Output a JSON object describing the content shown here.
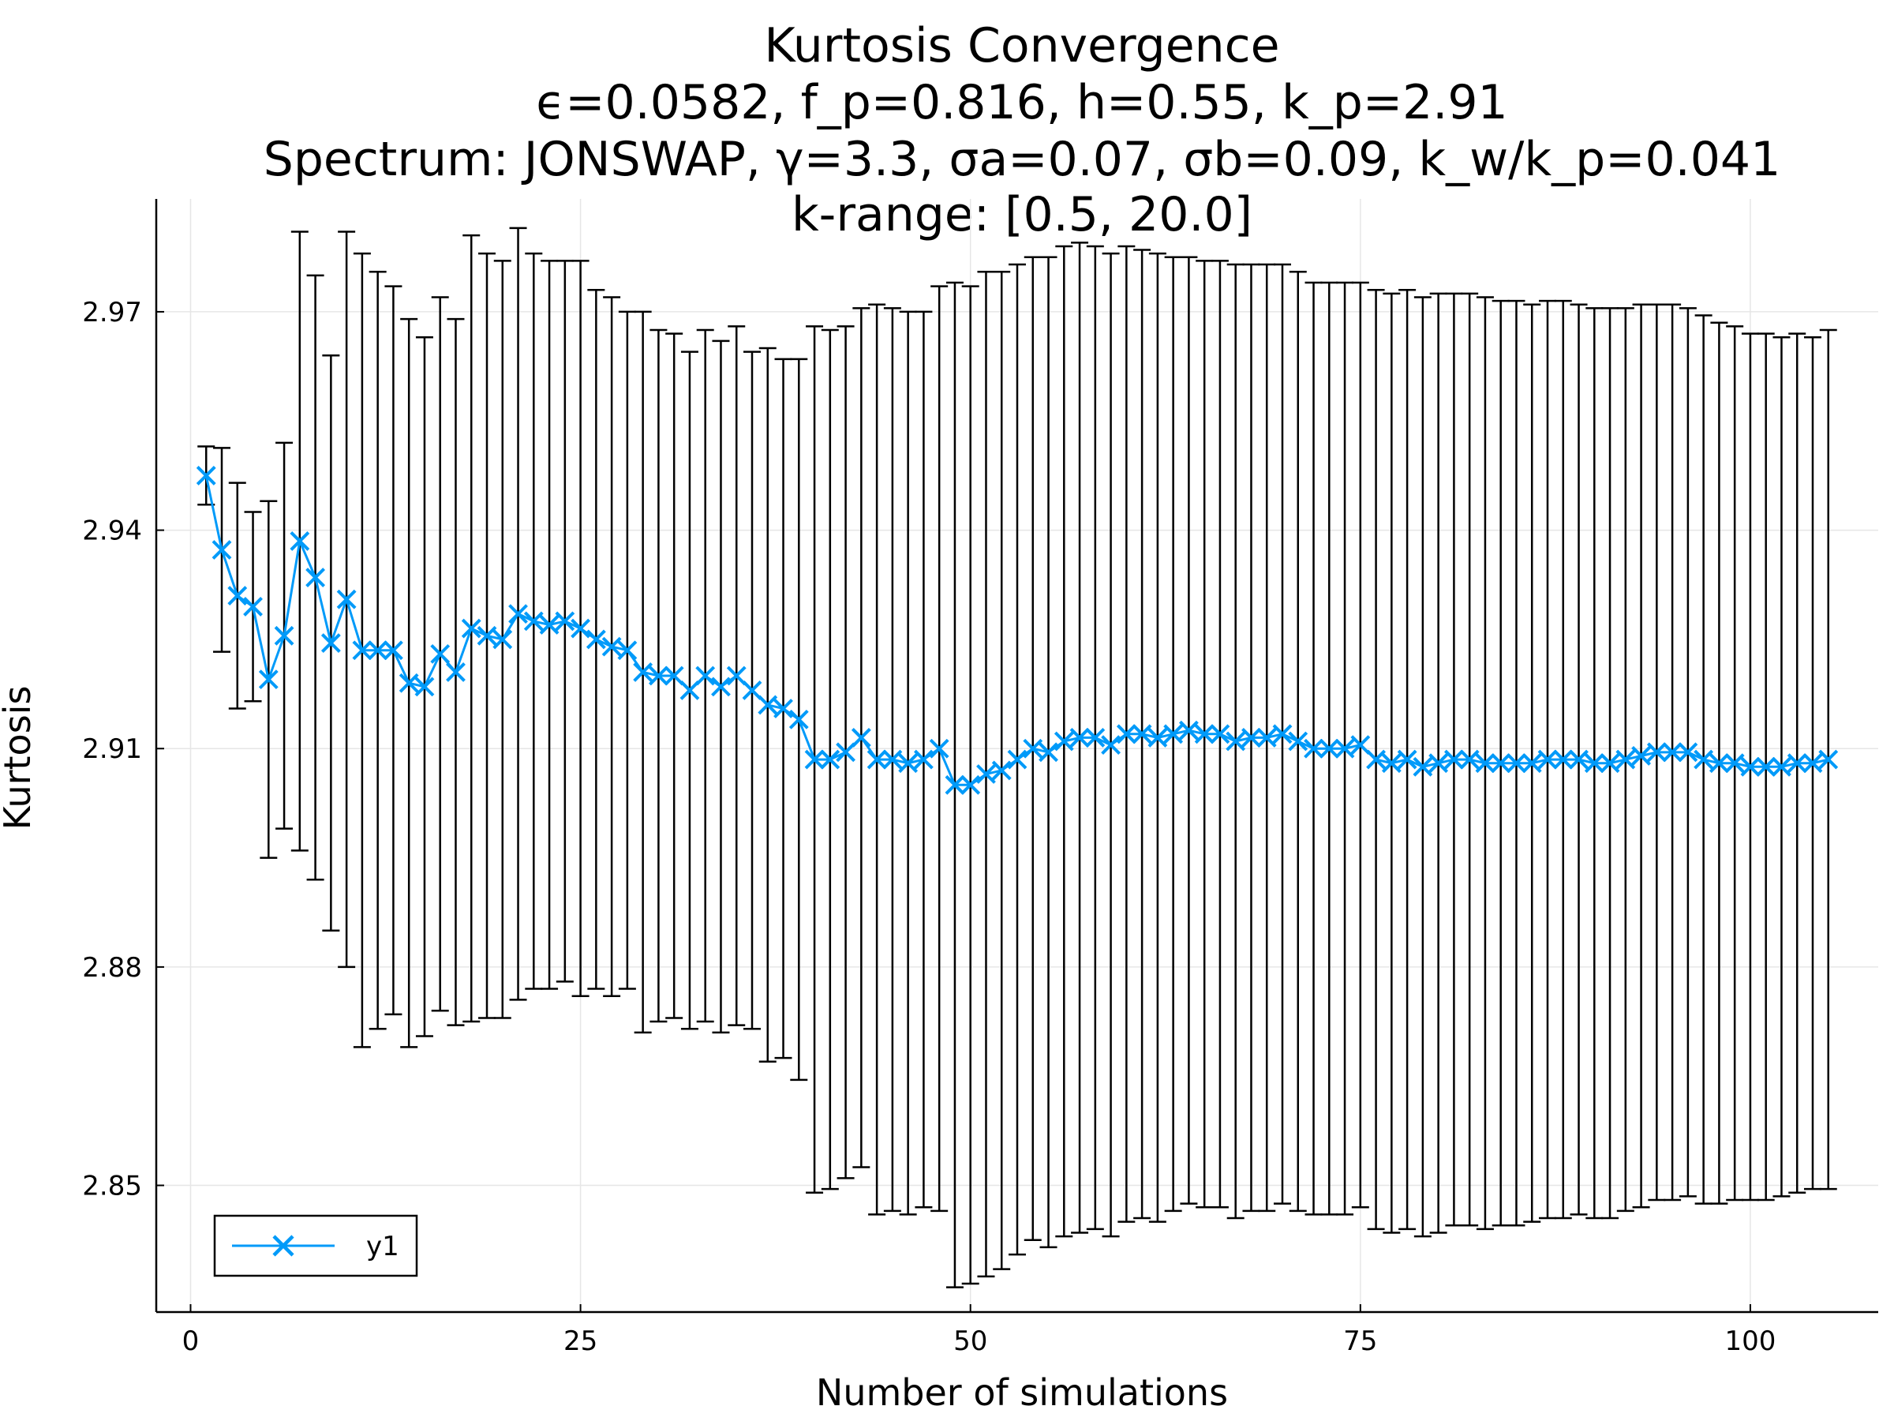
{
  "chart_data": {
    "type": "line",
    "title_lines": [
      "Kurtosis Convergence",
      "ϵ=0.0582, f_p=0.816, h=0.55, k_p=2.91",
      "Spectrum: JONSWAP, γ=3.3, σa=0.07, σb=0.09, k_w/k_p=0.041",
      "k-range: [0.5, 20.0]"
    ],
    "xlabel": "Number of simulations",
    "ylabel": "Kurtosis",
    "xlim": [
      -2.2,
      108.2
    ],
    "ylim": [
      2.8326,
      2.9855
    ],
    "xticks": [
      0,
      25,
      50,
      75,
      100
    ],
    "xtick_labels": [
      "0",
      "25",
      "50",
      "75",
      "100"
    ],
    "yticks": [
      2.85,
      2.88,
      2.91,
      2.94,
      2.97
    ],
    "ytick_labels": [
      "2.85",
      "2.88",
      "2.91",
      "2.94",
      "2.97"
    ],
    "grid": true,
    "legend_position": "bottom-left",
    "series": [
      {
        "name": "y1",
        "color": "#009af9",
        "marker": "x",
        "x": [
          1,
          2,
          3,
          4,
          5,
          6,
          7,
          8,
          9,
          10,
          11,
          12,
          13,
          14,
          15,
          16,
          17,
          18,
          19,
          20,
          21,
          22,
          23,
          24,
          25,
          26,
          27,
          28,
          29,
          30,
          31,
          32,
          33,
          34,
          35,
          36,
          37,
          38,
          39,
          40,
          41,
          42,
          43,
          44,
          45,
          46,
          47,
          48,
          49,
          50,
          51,
          52,
          53,
          54,
          55,
          56,
          57,
          58,
          59,
          60,
          61,
          62,
          63,
          64,
          65,
          66,
          67,
          68,
          69,
          70,
          71,
          72,
          73,
          74,
          75,
          76,
          77,
          78,
          79,
          80,
          81,
          82,
          83,
          84,
          85,
          86,
          87,
          88,
          89,
          90,
          91,
          92,
          93,
          94,
          95,
          96,
          97,
          98,
          99,
          100,
          101,
          102,
          103,
          104,
          105
        ],
        "y": [
          2.9475,
          2.9373,
          2.931,
          2.9295,
          2.9195,
          2.9255,
          2.9385,
          2.9335,
          2.9245,
          2.9305,
          2.9235,
          2.9235,
          2.9235,
          2.919,
          2.9185,
          2.923,
          2.9205,
          2.9265,
          2.9255,
          2.925,
          2.9285,
          2.9275,
          2.927,
          2.9275,
          2.9265,
          2.925,
          2.924,
          2.9235,
          2.9205,
          2.92,
          2.92,
          2.918,
          2.92,
          2.9185,
          2.92,
          2.918,
          2.916,
          2.9155,
          2.914,
          2.9085,
          2.9085,
          2.9095,
          2.9115,
          2.9085,
          2.9085,
          2.908,
          2.9085,
          2.91,
          2.905,
          2.905,
          2.9065,
          2.907,
          2.9085,
          2.91,
          2.9095,
          2.911,
          2.9115,
          2.9115,
          2.9105,
          2.912,
          2.912,
          2.9115,
          2.912,
          2.9125,
          2.912,
          2.912,
          2.911,
          2.9115,
          2.9115,
          2.912,
          2.911,
          2.91,
          2.91,
          2.91,
          2.9105,
          2.9085,
          2.908,
          2.9085,
          2.9075,
          2.908,
          2.9085,
          2.9085,
          2.908,
          2.908,
          2.908,
          2.908,
          2.9085,
          2.9085,
          2.9085,
          2.908,
          2.908,
          2.9085,
          2.909,
          2.9095,
          2.9095,
          2.9095,
          2.9085,
          2.908,
          2.908,
          2.9075,
          2.9075,
          2.9075,
          2.908,
          2.908,
          2.9085
        ],
        "error": [
          0.004,
          0.014,
          0.0155,
          0.013,
          0.0245,
          0.0265,
          0.0425,
          0.0415,
          0.0395,
          0.0505,
          0.0545,
          0.052,
          0.05,
          0.05,
          0.048,
          0.049,
          0.0485,
          0.054,
          0.0525,
          0.052,
          0.053,
          0.0505,
          0.05,
          0.0495,
          0.0505,
          0.048,
          0.048,
          0.0465,
          0.0495,
          0.0475,
          0.047,
          0.0465,
          0.0475,
          0.0475,
          0.048,
          0.0465,
          0.049,
          0.048,
          0.0495,
          0.0595,
          0.059,
          0.0585,
          0.059,
          0.0625,
          0.062,
          0.062,
          0.0615,
          0.0635,
          0.069,
          0.0685,
          0.069,
          0.0685,
          0.068,
          0.0675,
          0.068,
          0.068,
          0.068,
          0.0675,
          0.0675,
          0.067,
          0.0665,
          0.0665,
          0.0655,
          0.065,
          0.065,
          0.065,
          0.0655,
          0.065,
          0.065,
          0.0645,
          0.0645,
          0.064,
          0.064,
          0.064,
          0.0635,
          0.0645,
          0.0645,
          0.0645,
          0.0645,
          0.0645,
          0.064,
          0.064,
          0.064,
          0.0635,
          0.0635,
          0.063,
          0.063,
          0.063,
          0.0625,
          0.0625,
          0.0625,
          0.062,
          0.062,
          0.0615,
          0.0615,
          0.061,
          0.061,
          0.0605,
          0.06,
          0.0595,
          0.0595,
          0.059,
          0.059,
          0.0585,
          0.059
        ]
      }
    ]
  }
}
